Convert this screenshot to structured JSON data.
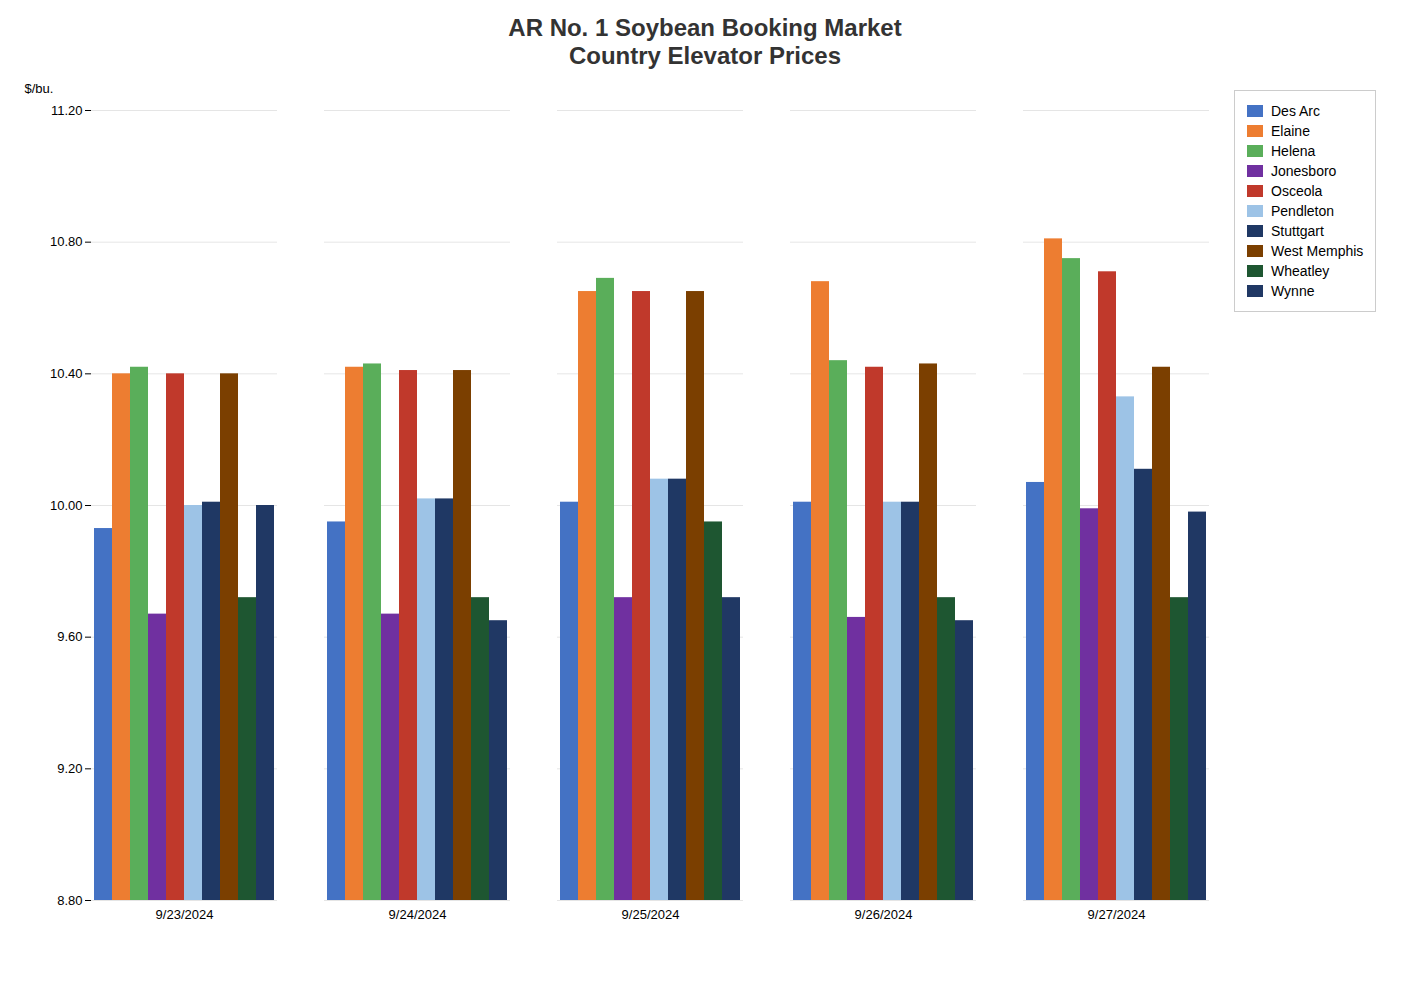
{
  "chart_data": {
    "type": "bar",
    "title": "AR No. 1 Soybean Booking Market\nCountry Elevator Prices",
    "ylabel": "$/bu.",
    "categories": [
      "9/23/2024",
      "9/24/2024",
      "9/25/2024",
      "9/26/2024",
      "9/27/2024"
    ],
    "series": [
      {
        "name": "Des Arc",
        "color": "#4472C4",
        "values": [
          9.93,
          9.95,
          10.01,
          10.01,
          10.07
        ]
      },
      {
        "name": "Elaine",
        "color": "#ED7D31",
        "values": [
          10.4,
          10.42,
          10.65,
          10.68,
          10.81
        ]
      },
      {
        "name": "Helena",
        "color": "#5AAE5A",
        "values": [
          10.42,
          10.43,
          10.69,
          10.44,
          10.75
        ]
      },
      {
        "name": "Jonesboro",
        "color": "#7030A0",
        "values": [
          9.67,
          9.67,
          9.72,
          9.66,
          9.99
        ]
      },
      {
        "name": "Osceola",
        "color": "#C0392B",
        "values": [
          10.4,
          10.41,
          10.65,
          10.42,
          10.71
        ]
      },
      {
        "name": "Pendleton",
        "color": "#9DC3E6",
        "values": [
          10.0,
          10.02,
          10.08,
          10.01,
          10.33
        ]
      },
      {
        "name": "Stuttgart",
        "color": "#1F3864",
        "values": [
          10.01,
          10.02,
          10.08,
          10.01,
          10.11
        ]
      },
      {
        "name": "West Memphis",
        "color": "#7B3F00",
        "values": [
          10.4,
          10.41,
          10.65,
          10.43,
          10.42
        ]
      },
      {
        "name": "Wheatley",
        "color": "#1E5631",
        "values": [
          9.72,
          9.72,
          9.95,
          9.72,
          9.72
        ]
      },
      {
        "name": "Wynne",
        "color": "#203864",
        "values": [
          10.0,
          9.65,
          9.72,
          9.65,
          9.98
        ]
      }
    ],
    "ylim": [
      8.8,
      11.2
    ],
    "yticks": [
      {
        "value": 8.8,
        "label": "8.80"
      },
      {
        "value": 9.2,
        "label": "9.20"
      },
      {
        "value": 9.6,
        "label": "9.60"
      },
      {
        "value": 10,
        "label": "10.00"
      },
      {
        "value": 10.4,
        "label": "10.40"
      },
      {
        "value": 10.8,
        "label": "10.80"
      },
      {
        "value": 11.2,
        "label": "11.20"
      }
    ],
    "grid": true,
    "legend": "right"
  }
}
